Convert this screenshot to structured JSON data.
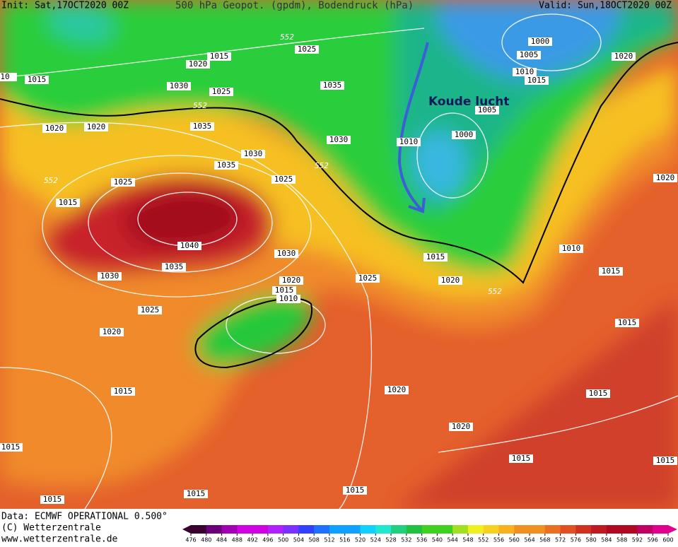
{
  "header": {
    "init": "Init: Sat,17OCT2020 00Z",
    "title": "500 hPa Geopot. (gpdm), Bodendruck (hPa)",
    "valid": "Valid: Sun,18OCT2020 00Z"
  },
  "map": {
    "annotation": "Koude lucht",
    "isobar_labels": [
      "10",
      "1015",
      "1015",
      "1020",
      "1025",
      "1030",
      "1025",
      "1035",
      "1020",
      "1020",
      "1035",
      "1030",
      "1035",
      "1025",
      "1030",
      "1025",
      "1015",
      "1040",
      "1035",
      "1030",
      "1030",
      "1020",
      "1015",
      "1010",
      "1025",
      "1025",
      "1020",
      "1015",
      "1015",
      "1020",
      "1000",
      "1005",
      "1010",
      "1015",
      "1020",
      "1005",
      "1000",
      "1010",
      "1020",
      "1010",
      "1015",
      "1015",
      "1015",
      "1020",
      "1020",
      "1015",
      "1015",
      "1015",
      "1015",
      "1015",
      "1015"
    ],
    "contour_labels": [
      "552",
      "552",
      "552",
      "552",
      "552"
    ]
  },
  "footer": {
    "data": "Data: ECMWF OPERATIONAL 0.500°",
    "copyright": "(C) Wetterzentrale",
    "url": "www.wetterzentrale.de"
  },
  "legend": {
    "ticks": [
      476,
      480,
      484,
      488,
      492,
      496,
      500,
      504,
      508,
      512,
      516,
      520,
      524,
      528,
      532,
      536,
      540,
      544,
      548,
      552,
      556,
      560,
      564,
      568,
      572,
      576,
      580,
      584,
      588,
      592,
      596,
      600
    ]
  }
}
